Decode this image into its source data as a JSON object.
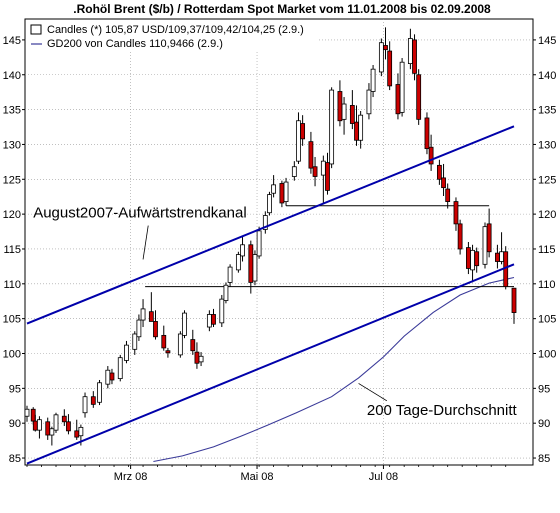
{
  "chart_data": {
    "type": "candlestick",
    "title": ".Rohöl Brent ($/b) / Rotterdam Spot Market vom 11.01.2008 bis 02.09.2008",
    "legend": {
      "placement": "top-left",
      "entries": [
        "Candles (*) 105,87 USD/109,37/109,42/104,25 (2.9.)",
        "GD200 von Candles 110,9466 (2.9.)"
      ]
    },
    "x_axis": {
      "labels": [
        {
          "label": "Mrz 08",
          "date": "2008-03-01"
        },
        {
          "label": "Mai 08",
          "date": "2008-05-01"
        },
        {
          "label": "Jul 08",
          "date": "2008-07-01"
        }
      ],
      "range": [
        "2008-01-11",
        "2008-09-02"
      ]
    },
    "y_axis": {
      "ticks": [
        85,
        90,
        95,
        100,
        105,
        110,
        115,
        120,
        125,
        130,
        135,
        140,
        145
      ],
      "ylim": [
        84,
        148
      ],
      "both_sides": true
    },
    "grid": true,
    "colors": {
      "up": "#ffffff",
      "down": "#cc0000",
      "channel": "#0000aa",
      "gd200": "#3a3a99",
      "grid": "#9a9a9a"
    },
    "annotations": [
      {
        "text": "August2007-Aufwärtstrendkanal",
        "anchor": [
          "2008-01-14",
          119.5
        ],
        "pointer_to": [
          "2008-03-07",
          113.5
        ]
      },
      {
        "text": "200 Tage-Durchschnitt",
        "anchor": [
          "2008-06-23",
          91.2
        ],
        "pointer_to": [
          "2008-06-19",
          95.7
        ]
      }
    ],
    "trend_channel": {
      "upper": {
        "start": [
          "2008-01-11",
          104.3
        ],
        "end": [
          "2008-09-02",
          132.6
        ]
      },
      "lower": {
        "start": [
          "2008-01-11",
          84.2
        ],
        "end": [
          "2008-09-02",
          112.8
        ]
      }
    },
    "horizontal_lines": [
      {
        "value": 121.2,
        "from": "2008-05-15",
        "to": "2008-08-21"
      },
      {
        "value": 109.6,
        "from": "2008-03-08",
        "to": "2008-09-02"
      }
    ],
    "gd200": {
      "x": [
        "2008-03-12",
        "2008-03-26",
        "2008-04-10",
        "2008-04-23",
        "2008-05-06",
        "2008-05-20",
        "2008-06-06",
        "2008-06-19",
        "2008-07-01",
        "2008-07-11",
        "2008-07-25",
        "2008-08-07",
        "2008-08-21",
        "2008-09-02"
      ],
      "y": [
        84.5,
        85.3,
        86.6,
        88.1,
        89.7,
        91.5,
        93.8,
        96.5,
        99.5,
        102.5,
        105.9,
        108.4,
        110.1,
        110.9
      ]
    },
    "candles": [
      {
        "date": "2008-01-11",
        "open": 91.0,
        "high": 92.5,
        "low": 90.2,
        "close": 92.0
      },
      {
        "date": "2008-01-14",
        "open": 92.0,
        "high": 92.3,
        "low": 89.8,
        "close": 90.3
      },
      {
        "date": "2008-01-15",
        "open": 90.3,
        "high": 91.2,
        "low": 88.8,
        "close": 89.0
      },
      {
        "date": "2008-01-17",
        "open": 89.0,
        "high": 91.0,
        "low": 87.8,
        "close": 90.5
      },
      {
        "date": "2008-01-21",
        "open": 90.2,
        "high": 90.8,
        "low": 87.6,
        "close": 88.3
      },
      {
        "date": "2008-01-23",
        "open": 88.3,
        "high": 89.5,
        "low": 86.8,
        "close": 89.2
      },
      {
        "date": "2008-01-25",
        "open": 89.0,
        "high": 91.5,
        "low": 88.6,
        "close": 91.2
      },
      {
        "date": "2008-01-29",
        "open": 91.0,
        "high": 92.0,
        "low": 89.6,
        "close": 90.2
      },
      {
        "date": "2008-01-31",
        "open": 90.2,
        "high": 91.3,
        "low": 88.4,
        "close": 88.9
      },
      {
        "date": "2008-02-04",
        "open": 88.9,
        "high": 90.5,
        "low": 87.6,
        "close": 88.0
      },
      {
        "date": "2008-02-06",
        "open": 88.2,
        "high": 89.8,
        "low": 86.8,
        "close": 89.4
      },
      {
        "date": "2008-02-08",
        "open": 91.5,
        "high": 94.4,
        "low": 90.8,
        "close": 93.8
      },
      {
        "date": "2008-02-12",
        "open": 93.8,
        "high": 94.6,
        "low": 92.2,
        "close": 92.7
      },
      {
        "date": "2008-02-15",
        "open": 93.0,
        "high": 96.2,
        "low": 92.6,
        "close": 95.8
      },
      {
        "date": "2008-02-19",
        "open": 95.6,
        "high": 98.2,
        "low": 95.0,
        "close": 97.6
      },
      {
        "date": "2008-02-21",
        "open": 97.2,
        "high": 97.8,
        "low": 95.6,
        "close": 96.2
      },
      {
        "date": "2008-02-25",
        "open": 96.4,
        "high": 99.8,
        "low": 96.0,
        "close": 99.4
      },
      {
        "date": "2008-02-28",
        "open": 99.0,
        "high": 101.8,
        "low": 98.6,
        "close": 101.2
      },
      {
        "date": "2008-03-03",
        "open": 100.6,
        "high": 103.2,
        "low": 99.8,
        "close": 102.8
      },
      {
        "date": "2008-03-05",
        "open": 102.4,
        "high": 105.6,
        "low": 101.8,
        "close": 104.8
      },
      {
        "date": "2008-03-07",
        "open": 104.8,
        "high": 107.8,
        "low": 103.8,
        "close": 106.4
      },
      {
        "date": "2008-03-11",
        "open": 106.0,
        "high": 108.8,
        "low": 105.2,
        "close": 104.6
      },
      {
        "date": "2008-03-13",
        "open": 104.6,
        "high": 106.2,
        "low": 102.0,
        "close": 102.4
      },
      {
        "date": "2008-03-17",
        "open": 102.6,
        "high": 104.0,
        "low": 100.4,
        "close": 100.8
      },
      {
        "date": "2008-03-19",
        "open": 100.4,
        "high": 100.8,
        "low": 99.4,
        "close": 100.1
      },
      {
        "date": "2008-03-25",
        "open": 99.8,
        "high": 103.2,
        "low": 99.4,
        "close": 102.8
      },
      {
        "date": "2008-03-27",
        "open": 102.6,
        "high": 106.2,
        "low": 102.2,
        "close": 105.8
      },
      {
        "date": "2008-03-31",
        "open": 102.0,
        "high": 103.4,
        "low": 99.8,
        "close": 100.4
      },
      {
        "date": "2008-04-02",
        "open": 100.2,
        "high": 101.6,
        "low": 97.8,
        "close": 98.6
      },
      {
        "date": "2008-04-04",
        "open": 98.8,
        "high": 100.2,
        "low": 98.2,
        "close": 99.6
      },
      {
        "date": "2008-04-08",
        "open": 103.8,
        "high": 106.2,
        "low": 103.2,
        "close": 105.6
      },
      {
        "date": "2008-04-10",
        "open": 105.6,
        "high": 106.4,
        "low": 103.8,
        "close": 104.2
      },
      {
        "date": "2008-04-14",
        "open": 104.4,
        "high": 108.4,
        "low": 103.8,
        "close": 107.8
      },
      {
        "date": "2008-04-16",
        "open": 107.6,
        "high": 110.2,
        "low": 107.2,
        "close": 109.8
      },
      {
        "date": "2008-04-18",
        "open": 110.2,
        "high": 112.8,
        "low": 109.6,
        "close": 112.4
      },
      {
        "date": "2008-04-22",
        "open": 112.0,
        "high": 114.6,
        "low": 111.6,
        "close": 114.2
      },
      {
        "date": "2008-04-24",
        "open": 114.0,
        "high": 116.8,
        "low": 113.2,
        "close": 115.6
      },
      {
        "date": "2008-04-28",
        "open": 115.6,
        "high": 116.2,
        "low": 108.6,
        "close": 110.2
      },
      {
        "date": "2008-04-30",
        "open": 110.4,
        "high": 114.8,
        "low": 109.8,
        "close": 114.2
      },
      {
        "date": "2008-05-02",
        "open": 114.0,
        "high": 118.2,
        "low": 113.6,
        "close": 117.6
      },
      {
        "date": "2008-05-05",
        "open": 117.8,
        "high": 120.4,
        "low": 117.2,
        "close": 119.8
      },
      {
        "date": "2008-05-07",
        "open": 120.2,
        "high": 123.2,
        "low": 119.8,
        "close": 122.8
      },
      {
        "date": "2008-05-09",
        "open": 123.0,
        "high": 125.6,
        "low": 122.4,
        "close": 124.2
      },
      {
        "date": "2008-05-13",
        "open": 124.4,
        "high": 124.8,
        "low": 121.0,
        "close": 121.6
      },
      {
        "date": "2008-05-15",
        "open": 121.8,
        "high": 125.2,
        "low": 121.2,
        "close": 124.6
      },
      {
        "date": "2008-05-19",
        "open": 125.4,
        "high": 127.6,
        "low": 124.8,
        "close": 126.8
      },
      {
        "date": "2008-05-21",
        "open": 127.6,
        "high": 134.6,
        "low": 127.2,
        "close": 133.4
      },
      {
        "date": "2008-05-23",
        "open": 133.0,
        "high": 134.2,
        "low": 129.8,
        "close": 130.8
      },
      {
        "date": "2008-05-27",
        "open": 130.4,
        "high": 131.8,
        "low": 125.8,
        "close": 126.6
      },
      {
        "date": "2008-05-29",
        "open": 126.8,
        "high": 128.2,
        "low": 124.0,
        "close": 125.4
      },
      {
        "date": "2008-06-02",
        "open": 125.6,
        "high": 128.4,
        "low": 121.4,
        "close": 127.6
      },
      {
        "date": "2008-06-04",
        "open": 127.4,
        "high": 128.8,
        "low": 122.8,
        "close": 123.4
      },
      {
        "date": "2008-06-06",
        "open": 127.2,
        "high": 138.2,
        "low": 126.6,
        "close": 137.8
      },
      {
        "date": "2008-06-10",
        "open": 137.6,
        "high": 139.2,
        "low": 132.6,
        "close": 133.4
      },
      {
        "date": "2008-06-12",
        "open": 133.6,
        "high": 136.8,
        "low": 131.4,
        "close": 135.8
      },
      {
        "date": "2008-06-16",
        "open": 135.6,
        "high": 137.8,
        "low": 132.2,
        "close": 133.0
      },
      {
        "date": "2008-06-18",
        "open": 133.2,
        "high": 135.6,
        "low": 129.8,
        "close": 130.6
      },
      {
        "date": "2008-06-20",
        "open": 130.6,
        "high": 134.8,
        "low": 129.4,
        "close": 134.2
      },
      {
        "date": "2008-06-24",
        "open": 134.4,
        "high": 138.8,
        "low": 133.6,
        "close": 137.8
      },
      {
        "date": "2008-06-26",
        "open": 137.6,
        "high": 141.4,
        "low": 136.8,
        "close": 140.8
      },
      {
        "date": "2008-06-30",
        "open": 140.4,
        "high": 145.2,
        "low": 139.8,
        "close": 144.6
      },
      {
        "date": "2008-07-02",
        "open": 144.2,
        "high": 146.8,
        "low": 142.2,
        "close": 143.6
      },
      {
        "date": "2008-07-04",
        "open": 143.4,
        "high": 144.8,
        "low": 137.8,
        "close": 138.4
      },
      {
        "date": "2008-07-08",
        "open": 138.6,
        "high": 140.2,
        "low": 133.6,
        "close": 134.4
      },
      {
        "date": "2008-07-10",
        "open": 134.6,
        "high": 142.4,
        "low": 134.0,
        "close": 141.8
      },
      {
        "date": "2008-07-14",
        "open": 141.6,
        "high": 146.6,
        "low": 140.8,
        "close": 145.2
      },
      {
        "date": "2008-07-16",
        "open": 145.0,
        "high": 145.8,
        "low": 139.2,
        "close": 140.2
      },
      {
        "date": "2008-07-18",
        "open": 140.0,
        "high": 140.8,
        "low": 132.8,
        "close": 133.6
      },
      {
        "date": "2008-07-22",
        "open": 133.8,
        "high": 134.6,
        "low": 128.6,
        "close": 129.4
      },
      {
        "date": "2008-07-24",
        "open": 129.6,
        "high": 131.4,
        "low": 126.2,
        "close": 127.2
      },
      {
        "date": "2008-07-28",
        "open": 127.0,
        "high": 127.8,
        "low": 124.2,
        "close": 125.0
      },
      {
        "date": "2008-07-30",
        "open": 125.2,
        "high": 127.2,
        "low": 122.6,
        "close": 123.8
      },
      {
        "date": "2008-08-01",
        "open": 123.6,
        "high": 124.4,
        "low": 120.8,
        "close": 121.8
      },
      {
        "date": "2008-08-05",
        "open": 121.8,
        "high": 122.4,
        "low": 117.6,
        "close": 118.6
      },
      {
        "date": "2008-08-07",
        "open": 118.6,
        "high": 119.2,
        "low": 114.2,
        "close": 115.0
      },
      {
        "date": "2008-08-11",
        "open": 115.2,
        "high": 116.0,
        "low": 111.4,
        "close": 112.2
      },
      {
        "date": "2008-08-13",
        "open": 112.0,
        "high": 115.6,
        "low": 110.2,
        "close": 114.8
      },
      {
        "date": "2008-08-15",
        "open": 114.6,
        "high": 115.2,
        "low": 111.6,
        "close": 112.6
      },
      {
        "date": "2008-08-19",
        "open": 112.8,
        "high": 118.8,
        "low": 112.2,
        "close": 118.2
      },
      {
        "date": "2008-08-21",
        "open": 118.6,
        "high": 120.8,
        "low": 113.8,
        "close": 114.6
      },
      {
        "date": "2008-08-25",
        "open": 114.4,
        "high": 115.6,
        "low": 112.2,
        "close": 113.2
      },
      {
        "date": "2008-08-27",
        "open": 113.2,
        "high": 117.4,
        "low": 112.8,
        "close": 114.6
      },
      {
        "date": "2008-08-29",
        "open": 114.6,
        "high": 115.4,
        "low": 109.2,
        "close": 109.6
      },
      {
        "date": "2008-09-02",
        "open": 109.37,
        "high": 109.42,
        "low": 104.25,
        "close": 105.87
      }
    ]
  }
}
